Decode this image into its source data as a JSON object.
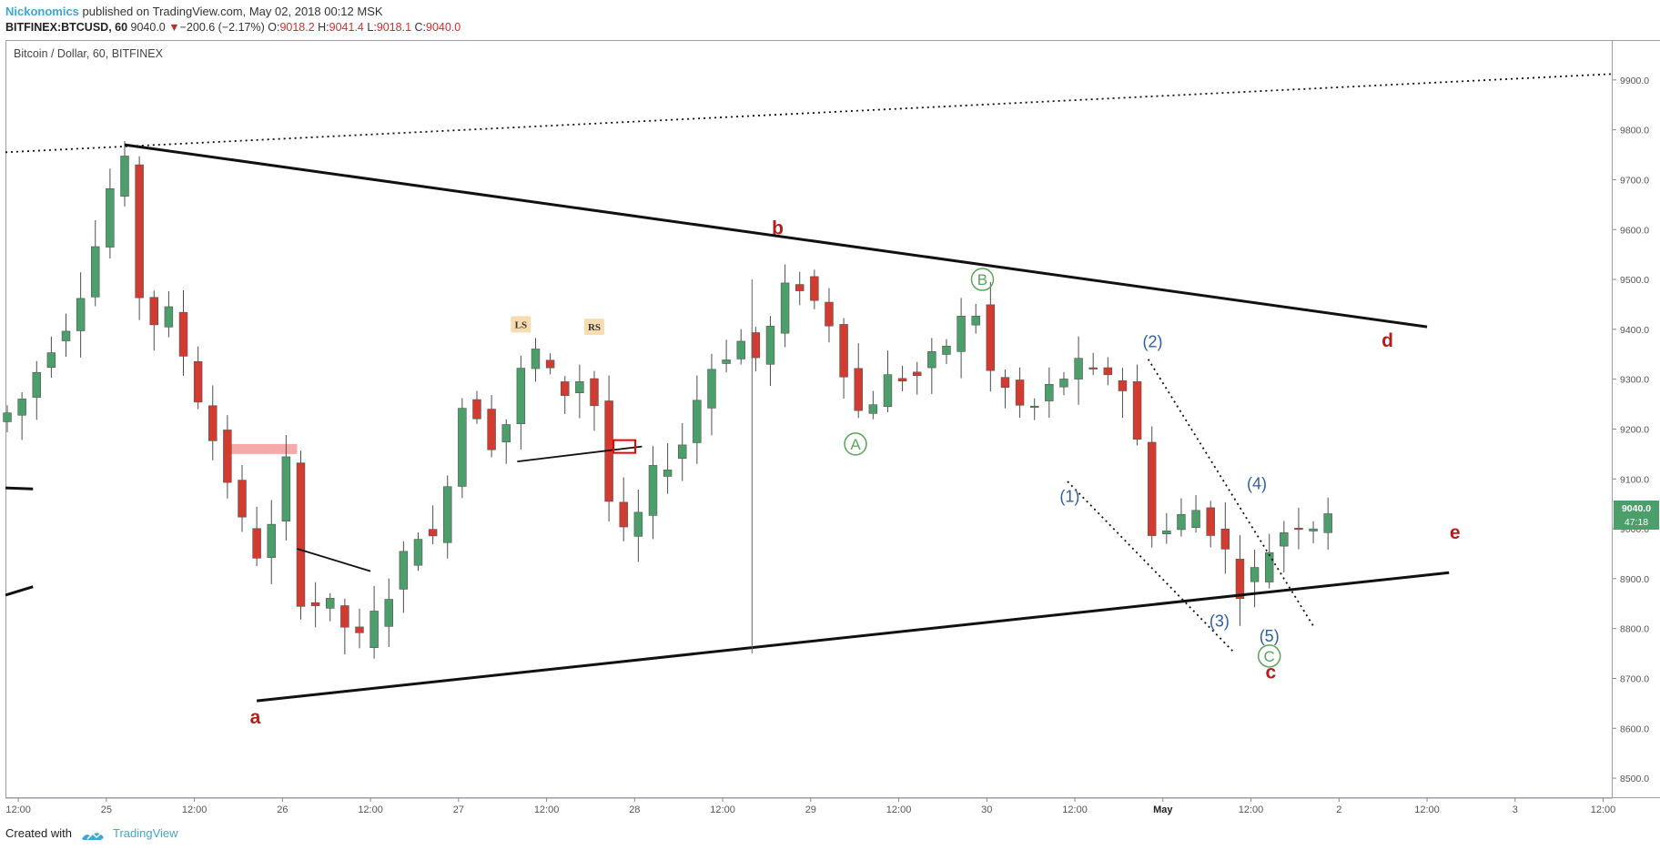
{
  "header": {
    "author": "Nickonomics",
    "published_text": " published on TradingView.com, May 02, 2018 00:12 MSK",
    "symbol": "BITFINEX:BTCUSD, 60",
    "last": "9040.0",
    "change_arrow": "▼",
    "change": "−200.6 (−2.17%)",
    "o_label": "O:",
    "o": "9018.2",
    "h_label": "H:",
    "h": "9041.4",
    "l_label": "L:",
    "l": "9018.1",
    "c_label": "C:",
    "c": "9040.0"
  },
  "legend": {
    "title": "Bitcoin / Dollar, 60, BITFINEX"
  },
  "price_tags": {
    "last": "9040.0",
    "countdown": "47:18"
  },
  "footer": {
    "created_with": "Created with",
    "brand": "TradingView"
  },
  "colors": {
    "up": "#4c9e6a",
    "down": "#d23b2f",
    "wick": "#4d4d4d",
    "wave_abc": "#b71c1c",
    "wave_blue": "#2f5ea8",
    "wave_green": "#5aa55a",
    "zone": "#f59a9a"
  },
  "chart_data": {
    "type": "candlestick",
    "title": "Bitcoin / Dollar, 60, BITFINEX",
    "ylim": [
      8460,
      9980
    ],
    "y_ticks": [
      8500,
      8600,
      8700,
      8800,
      8900,
      9000,
      9100,
      9200,
      9300,
      9400,
      9500,
      9600,
      9700,
      9800,
      9900
    ],
    "y_tick_labels": [
      "8500.0",
      "8600.0",
      "8700.0",
      "8800.0",
      "8900.0",
      "9000.0",
      "9100.0",
      "9200.0",
      "9300.0",
      "9400.0",
      "9500.0",
      "9600.0",
      "9700.0",
      "9800.0",
      "9900.0"
    ],
    "x_unit": "hours since Apr 24 00:00",
    "x_ticks": [
      {
        "t": 12,
        "label": "12:00"
      },
      {
        "t": 24,
        "label": "25"
      },
      {
        "t": 36,
        "label": "12:00"
      },
      {
        "t": 48,
        "label": "26"
      },
      {
        "t": 60,
        "label": "12:00"
      },
      {
        "t": 72,
        "label": "27"
      },
      {
        "t": 84,
        "label": "12:00"
      },
      {
        "t": 96,
        "label": "28"
      },
      {
        "t": 108,
        "label": "12:00"
      },
      {
        "t": 120,
        "label": "29"
      },
      {
        "t": 132,
        "label": "12:00"
      },
      {
        "t": 144,
        "label": "30"
      },
      {
        "t": 156,
        "label": "12:00"
      },
      {
        "t": 168,
        "label": "May"
      },
      {
        "t": 180,
        "label": "12:00"
      },
      {
        "t": 192,
        "label": "2"
      },
      {
        "t": 204,
        "label": "12:00"
      },
      {
        "t": 216,
        "label": "3"
      },
      {
        "t": 228,
        "label": "12:00"
      }
    ],
    "x_range": [
      10.25,
      229.3
    ],
    "price_keypoints": [
      [
        10.5,
        9215
      ],
      [
        13.5,
        9260
      ],
      [
        17,
        9360
      ],
      [
        20,
        9420
      ],
      [
        23,
        9540
      ],
      [
        25.5,
        9680
      ],
      [
        28,
        9740
      ],
      [
        30,
        9380
      ],
      [
        33,
        9450
      ],
      [
        36,
        9330
      ],
      [
        39,
        9200
      ],
      [
        42,
        9080
      ],
      [
        45,
        8940
      ],
      [
        48,
        9010
      ],
      [
        49.5,
        9130
      ],
      [
        51,
        8900
      ],
      [
        52.5,
        8790
      ],
      [
        54,
        8880
      ],
      [
        56,
        8830
      ],
      [
        59,
        8780
      ],
      [
        60.5,
        8770
      ],
      [
        62,
        8850
      ],
      [
        64,
        8880
      ],
      [
        66,
        8960
      ],
      [
        68,
        9010
      ],
      [
        70,
        8960
      ],
      [
        72,
        9150
      ],
      [
        74,
        9280
      ],
      [
        76,
        9220
      ],
      [
        78,
        9160
      ],
      [
        80,
        9230
      ],
      [
        82,
        9340
      ],
      [
        84,
        9360
      ],
      [
        86,
        9290
      ],
      [
        88,
        9270
      ],
      [
        90,
        9310
      ],
      [
        92,
        9230
      ],
      [
        93,
        9080
      ],
      [
        95,
        8980
      ],
      [
        97,
        9000
      ],
      [
        99,
        9100
      ],
      [
        101,
        9130
      ],
      [
        103,
        9150
      ],
      [
        105,
        9240
      ],
      [
        107,
        9320
      ],
      [
        109,
        9340
      ],
      [
        111,
        9390
      ],
      [
        113,
        9330
      ],
      [
        115,
        9380
      ],
      [
        117,
        9460
      ],
      [
        118.5,
        9510
      ],
      [
        121,
        9460
      ],
      [
        123,
        9440
      ],
      [
        126,
        9300
      ],
      [
        127,
        9230
      ],
      [
        129,
        9250
      ],
      [
        132,
        9310
      ],
      [
        135,
        9300
      ],
      [
        137,
        9330
      ],
      [
        139,
        9360
      ],
      [
        141,
        9400
      ],
      [
        143,
        9470
      ],
      [
        145,
        9320
      ],
      [
        147,
        9290
      ],
      [
        149,
        9250
      ],
      [
        150.5,
        9230
      ],
      [
        152,
        9250
      ],
      [
        154,
        9290
      ],
      [
        156,
        9310
      ],
      [
        158,
        9330
      ],
      [
        160,
        9300
      ],
      [
        162,
        9320
      ],
      [
        164,
        9270
      ],
      [
        165,
        9230
      ],
      [
        166,
        9120
      ],
      [
        167,
        9020
      ],
      [
        168,
        8980
      ],
      [
        170,
        9000
      ],
      [
        172,
        9030
      ],
      [
        174,
        9040
      ],
      [
        176,
        8990
      ],
      [
        178,
        8940
      ],
      [
        179.5,
        8880
      ],
      [
        181,
        8900
      ],
      [
        183,
        8950
      ],
      [
        185,
        8990
      ],
      [
        187,
        9020
      ],
      [
        189,
        9000
      ],
      [
        191,
        9040
      ]
    ],
    "candles_note": "92 hourly candles (hours 10.5–191.5) regenerated from price_keypoints",
    "trendlines": [
      {
        "name": "upper-dotted",
        "style": "dotted",
        "from": [
          10.25,
          9755
        ],
        "to": [
          229.3,
          9912
        ]
      },
      {
        "name": "triangle-upper",
        "style": "solid",
        "from": [
          26.5,
          9770
        ],
        "to": [
          204,
          9405
        ]
      },
      {
        "name": "triangle-lower",
        "style": "solid",
        "from": [
          44.5,
          8655
        ],
        "to": [
          207,
          8912
        ]
      },
      {
        "name": "left-stub-upper",
        "style": "solid",
        "from": [
          10.25,
          9082
        ],
        "to": [
          14,
          9080
        ]
      },
      {
        "name": "left-stub-lower",
        "style": "solid",
        "from": [
          10.25,
          8867
        ],
        "to": [
          14,
          8884
        ]
      },
      {
        "name": "pennant-top",
        "style": "solid",
        "from": [
          50,
          8960
        ],
        "to": [
          60,
          8915
        ]
      },
      {
        "name": "neckline",
        "style": "solid",
        "from": [
          80,
          9135
        ],
        "to": [
          97,
          9165
        ]
      },
      {
        "name": "diag-lower",
        "style": "dotted",
        "from": [
          155,
          9095
        ],
        "to": [
          177.5,
          8755
        ]
      },
      {
        "name": "diag-upper",
        "style": "dotted",
        "from": [
          166,
          9340
        ],
        "to": [
          188.5,
          8805
        ]
      },
      {
        "name": "vertical-wick",
        "style": "solid",
        "from": [
          112,
          9500
        ],
        "to": [
          112,
          8750
        ]
      }
    ],
    "annotations": [
      {
        "label": "a",
        "t": 44.3,
        "price": 8610,
        "kind": "abc"
      },
      {
        "label": "b",
        "t": 115.5,
        "price": 9590,
        "kind": "abc"
      },
      {
        "label": "c",
        "t": 182.7,
        "price": 8700,
        "kind": "abc"
      },
      {
        "label": "d",
        "t": 198.6,
        "price": 9365,
        "kind": "abc"
      },
      {
        "label": "e",
        "t": 207.8,
        "price": 8980,
        "kind": "abc"
      },
      {
        "label": "A",
        "t": 126.1,
        "price": 9170,
        "kind": "circled-green"
      },
      {
        "label": "B",
        "t": 143.4,
        "price": 9500,
        "kind": "circled-green"
      },
      {
        "label": "C",
        "t": 182.5,
        "price": 8745,
        "kind": "circled-green"
      },
      {
        "label": "(1)",
        "t": 155.3,
        "price": 9065,
        "kind": "blue"
      },
      {
        "label": "(2)",
        "t": 166.6,
        "price": 9375,
        "kind": "blue"
      },
      {
        "label": "(3)",
        "t": 175.7,
        "price": 8815,
        "kind": "blue"
      },
      {
        "label": "(4)",
        "t": 180.8,
        "price": 9090,
        "kind": "blue"
      },
      {
        "label": "(5)",
        "t": 182.5,
        "price": 8785,
        "kind": "blue"
      },
      {
        "label": "LS",
        "t": 80.5,
        "price": 9410,
        "kind": "tag"
      },
      {
        "label": "RS",
        "t": 90.5,
        "price": 9405,
        "kind": "tag"
      }
    ],
    "zones": [
      {
        "name": "resistance-zone",
        "t0": 40,
        "t1": 50,
        "p0": 9170,
        "p1": 9150
      }
    ],
    "markers": [
      {
        "name": "neckline-break-box",
        "t": 94.6,
        "price": 9165
      }
    ]
  }
}
